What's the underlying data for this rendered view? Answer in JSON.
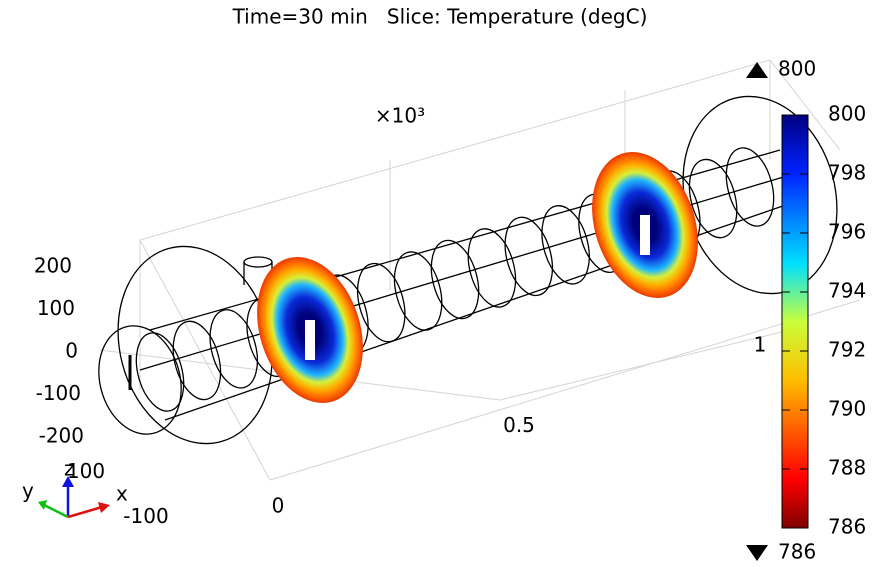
{
  "chart_data": {
    "type": "slice3d",
    "title": "Time=30 min   Slice: Temperature (degC)",
    "multiplier": "×10³",
    "clim": [
      786,
      800
    ],
    "cticks": [
      786,
      788,
      790,
      792,
      794,
      796,
      798,
      800
    ],
    "xticks": [
      0,
      0.5,
      1
    ],
    "yticks": [
      -100,
      100
    ],
    "zticks": [
      -200,
      -100,
      0,
      100,
      200
    ],
    "triad": [
      "x",
      "y",
      "z"
    ]
  }
}
